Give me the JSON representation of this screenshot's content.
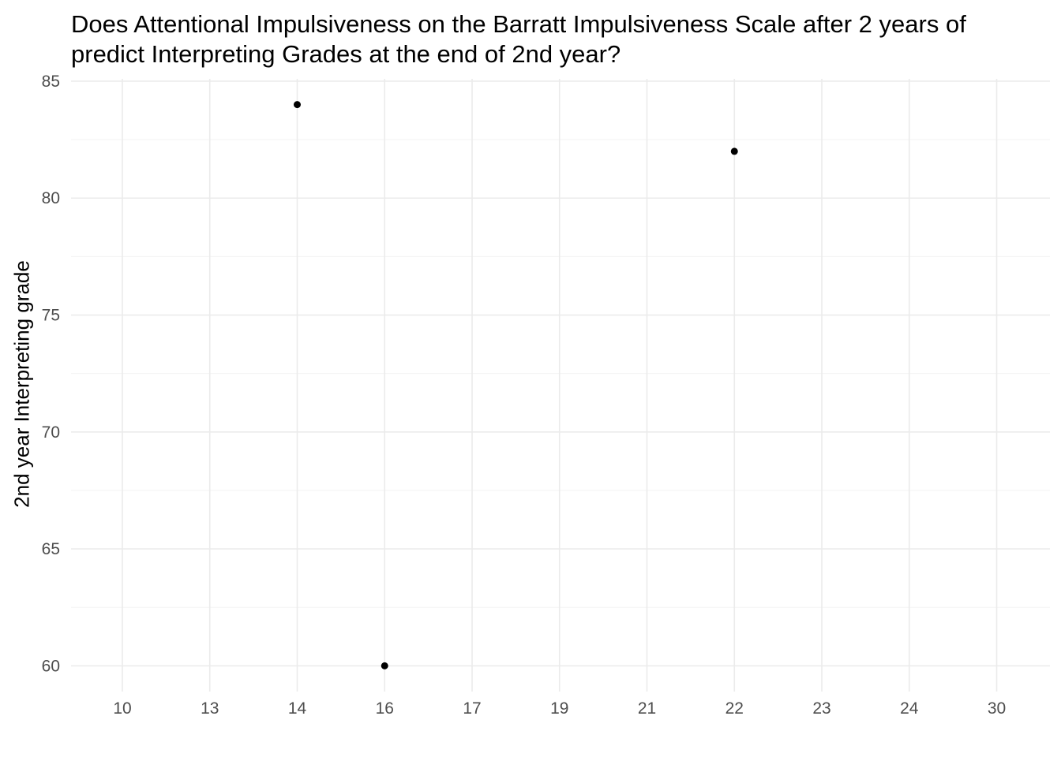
{
  "chart_data": {
    "type": "scatter",
    "title": "Does Attentional Impulsiveness on the Barratt Impulsiveness Scale after 2 years of",
    "title_line2": "predict Interpreting Grades at the end of 2nd year?",
    "xlabel": "",
    "ylabel": "2nd year Interpreting grade",
    "x_axis_type": "categorical",
    "categories": [
      "10",
      "13",
      "14",
      "16",
      "17",
      "19",
      "21",
      "22",
      "23",
      "24",
      "30"
    ],
    "points": [
      {
        "x": "14",
        "y": 84
      },
      {
        "x": "16",
        "y": 60
      },
      {
        "x": "22",
        "y": 82
      }
    ],
    "yticks": [
      60,
      65,
      70,
      75,
      80,
      85
    ],
    "ylim": [
      58.9,
      85.1
    ],
    "grid": true,
    "legend": "none",
    "colors": {
      "points": "#000000",
      "grid_major": "#ebebeb",
      "grid_minor": "#f3f3f3",
      "tick_text": "#4d4d4d"
    }
  }
}
